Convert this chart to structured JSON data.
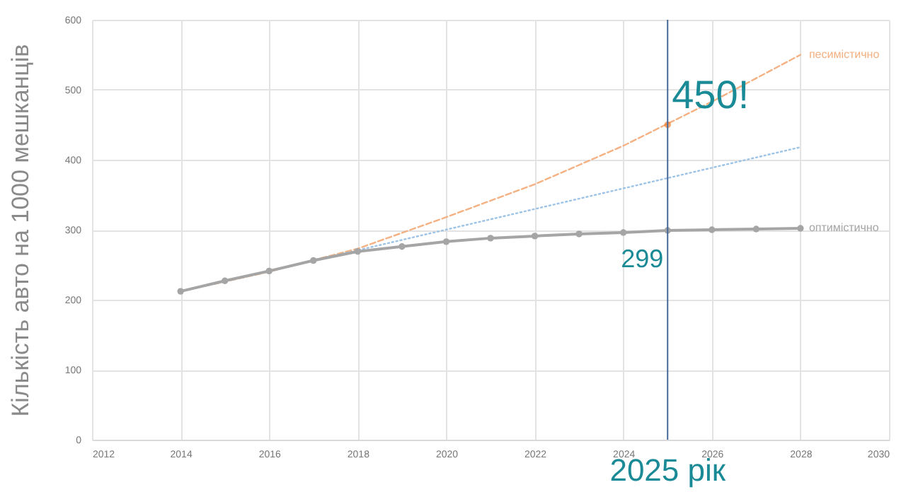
{
  "chart_data": {
    "type": "line",
    "ylabel": "Кількість авто на 1000 мешканців",
    "xlim": [
      2012,
      2030
    ],
    "xticks": [
      2012,
      2014,
      2016,
      2018,
      2020,
      2022,
      2024,
      2026,
      2028,
      2030
    ],
    "ylim": [
      0,
      600
    ],
    "yticks": [
      0,
      100,
      200,
      300,
      400,
      500,
      600
    ],
    "grid": true,
    "legend": false,
    "series": [
      {
        "name": "песимістично",
        "color": "#f4b183",
        "line_style": "dashed",
        "marker": "none",
        "x": [
          2014,
          2016,
          2018,
          2020,
          2022,
          2024,
          2026,
          2028
        ],
        "values": [
          212,
          240,
          273,
          318,
          365,
          420,
          483,
          550
        ]
      },
      {
        "color": "#9dc3e6",
        "line_style": "dotted",
        "marker": "none",
        "x": [
          2017,
          2028
        ],
        "values": [
          256,
          418
        ]
      },
      {
        "name": "оптимістично",
        "color": "#a5a5a5",
        "line_style": "solid",
        "marker": "circle",
        "x": [
          2014,
          2015,
          2016,
          2017,
          2018,
          2019,
          2020,
          2021,
          2022,
          2023,
          2024,
          2025,
          2026,
          2027,
          2028
        ],
        "values": [
          212,
          227,
          241,
          256,
          269,
          276,
          283,
          288,
          291,
          294,
          296,
          299,
          300,
          301,
          302
        ]
      },
      {
        "type": "scatter",
        "color": "#ed7d31",
        "marker": "circle",
        "x": [
          2025
        ],
        "values": [
          450
        ]
      }
    ],
    "annotations": [
      {
        "text": "450!",
        "x": 2025,
        "y": 450
      },
      {
        "text": "299",
        "x": 2025,
        "y": 299
      }
    ],
    "ref_lines": [
      {
        "axis": "x",
        "value": 2025,
        "label": "2025 рік",
        "color": "#44689a"
      }
    ]
  }
}
